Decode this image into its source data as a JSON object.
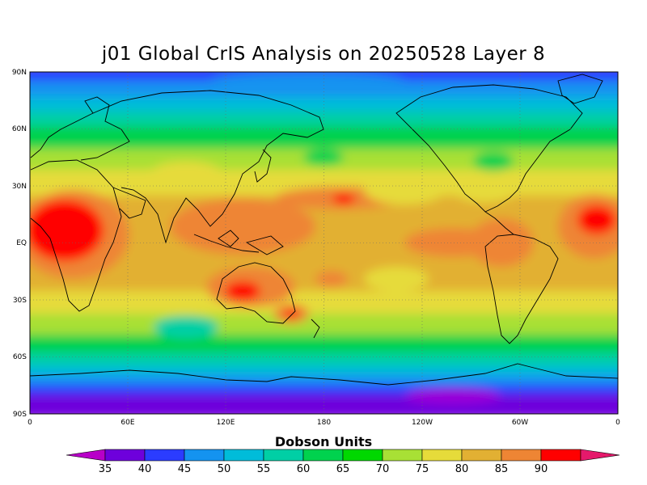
{
  "title": "j01 Global CrIS Analysis on 20250528 Layer 8",
  "map": {
    "lat_labels": [
      "90N",
      "60N",
      "30N",
      "EQ",
      "30S",
      "60S",
      "90S"
    ],
    "lon_labels": [
      "0",
      "60E",
      "120E",
      "180",
      "120W",
      "60W",
      "0"
    ],
    "grid": "dotted",
    "projection": "cylindrical-equidistant"
  },
  "colorbar": {
    "unit_label": "Dobson Units",
    "ticks": [
      "35",
      "40",
      "45",
      "50",
      "55",
      "60",
      "65",
      "70",
      "75",
      "80",
      "85",
      "90"
    ],
    "colors": [
      "#9a00d8",
      "#6e00dc",
      "#2b3cff",
      "#1493f0",
      "#00bcd9",
      "#00cfa5",
      "#00d24e",
      "#00d800",
      "#a8e035",
      "#e6db3a",
      "#e2b033",
      "#ee8534",
      "#ff0000",
      "#e5196b"
    ],
    "low_arrow_color": "#b800c8",
    "high_arrow_color": "#e5196b"
  }
}
